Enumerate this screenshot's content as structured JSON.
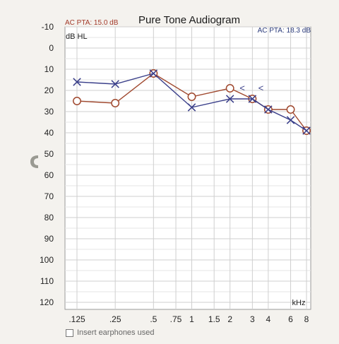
{
  "chart_data": {
    "type": "line",
    "title": "Pure Tone Audiogram",
    "pta_left": "AC PTA: 15.0 dB",
    "pta_right": "AC PTA: 18.3 dB",
    "ylabel": "dB HL",
    "xlabel": "kHz",
    "ylim": [
      -10,
      120
    ],
    "y_inverted": true,
    "y_ticks": [
      -10,
      0,
      10,
      20,
      30,
      40,
      50,
      60,
      70,
      80,
      90,
      100,
      110,
      120
    ],
    "x_ticks": [
      ".125",
      ".25",
      ".5",
      ".75",
      "1",
      "1.5",
      "2",
      "3",
      "4",
      "6",
      "8"
    ],
    "x_frequencies_khz": [
      0.125,
      0.25,
      0.5,
      0.75,
      1,
      1.5,
      2,
      3,
      4,
      6,
      8
    ],
    "grid": true,
    "series": [
      {
        "color": "#a0492f",
        "marker": "circle",
        "x": [
          0.125,
          0.25,
          0.5,
          1,
          2,
          3,
          4,
          6,
          8
        ],
        "y": [
          25,
          26,
          12,
          23,
          19,
          24,
          29,
          29,
          39
        ]
      },
      {
        "color": "#3a3f8a",
        "marker": "x",
        "x": [
          0.125,
          0.25,
          0.5,
          1,
          2,
          3,
          4,
          6,
          8
        ],
        "y": [
          16,
          17,
          12,
          28,
          24,
          24,
          29,
          34,
          39
        ]
      }
    ],
    "bone_markers": {
      "color": "#3a3f8a",
      "symbol": "<",
      "x": [
        2.5,
        3.5
      ],
      "y": [
        19,
        19
      ]
    }
  },
  "footer": {
    "note": "Insert earphones used"
  }
}
